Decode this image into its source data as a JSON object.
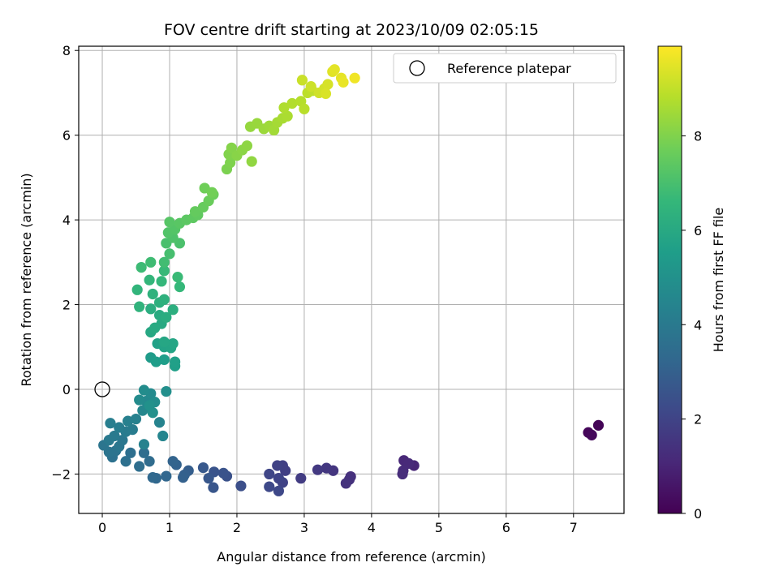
{
  "chart_data": {
    "type": "scatter",
    "title": "FOV centre drift starting at 2023/10/09 02:05:15",
    "xlabel": "Angular distance from reference (arcmin)",
    "ylabel": "Rotation from reference (arcmin)",
    "xlim": [
      -0.35,
      7.75
    ],
    "ylim": [
      -2.93,
      8.1
    ],
    "xticks": [
      "0",
      "1",
      "2",
      "3",
      "4",
      "5",
      "6",
      "7"
    ],
    "yticks": [
      "−2",
      "0",
      "2",
      "4",
      "6",
      "8"
    ],
    "grid": true,
    "legend_position": "top-right",
    "legend": [
      {
        "label": "Reference platepar",
        "marker": "open-circle",
        "color": "#000000"
      }
    ],
    "reference_point": {
      "x": 0,
      "y": 0
    },
    "colorbar": {
      "label": "Hours from first FF file",
      "colormap": "viridis",
      "range": [
        0,
        9.9
      ],
      "ticks": [
        "0",
        "2",
        "4",
        "6",
        "8"
      ]
    },
    "points": [
      [
        7.37,
        -0.85,
        0.1
      ],
      [
        7.22,
        -1.02,
        0.15
      ],
      [
        7.27,
        -1.08,
        0.2
      ],
      [
        4.63,
        -1.8,
        1.05
      ],
      [
        4.48,
        -1.68,
        1.1
      ],
      [
        4.55,
        -1.75,
        1.15
      ],
      [
        4.47,
        -1.92,
        1.2
      ],
      [
        4.46,
        -2.0,
        1.25
      ],
      [
        3.69,
        -2.06,
        1.35
      ],
      [
        3.67,
        -2.13,
        1.4
      ],
      [
        3.62,
        -2.22,
        1.45
      ],
      [
        3.43,
        -1.92,
        1.55
      ],
      [
        3.33,
        -1.86,
        1.6
      ],
      [
        3.2,
        -1.9,
        1.65
      ],
      [
        2.95,
        -2.1,
        1.75
      ],
      [
        2.72,
        -1.92,
        1.85
      ],
      [
        2.68,
        -1.8,
        1.9
      ],
      [
        2.6,
        -1.8,
        1.95
      ],
      [
        2.68,
        -2.2,
        2.0
      ],
      [
        2.62,
        -2.1,
        2.05
      ],
      [
        2.48,
        -2.0,
        2.1
      ],
      [
        2.62,
        -2.4,
        2.15
      ],
      [
        2.48,
        -2.3,
        2.2
      ],
      [
        2.06,
        -2.28,
        2.4
      ],
      [
        1.85,
        -2.05,
        2.5
      ],
      [
        1.8,
        -1.98,
        2.55
      ],
      [
        1.66,
        -1.95,
        2.6
      ],
      [
        1.65,
        -2.32,
        2.65
      ],
      [
        1.58,
        -2.1,
        2.7
      ],
      [
        1.5,
        -1.85,
        2.75
      ],
      [
        1.28,
        -1.92,
        2.95
      ],
      [
        1.22,
        -2.02,
        3.0
      ],
      [
        1.2,
        -2.08,
        3.05
      ],
      [
        1.1,
        -1.78,
        3.1
      ],
      [
        1.05,
        -1.7,
        3.15
      ],
      [
        0.95,
        -2.05,
        3.25
      ],
      [
        0.8,
        -2.1,
        3.3
      ],
      [
        0.75,
        -2.08,
        3.35
      ],
      [
        0.7,
        -1.7,
        3.45
      ],
      [
        0.62,
        -1.5,
        3.5
      ],
      [
        0.55,
        -1.82,
        3.55
      ],
      [
        0.42,
        -1.5,
        3.6
      ],
      [
        0.35,
        -1.7,
        3.65
      ],
      [
        0.15,
        -1.6,
        3.7
      ],
      [
        0.2,
        -1.45,
        3.75
      ],
      [
        0.1,
        -1.48,
        3.8
      ],
      [
        0.02,
        -1.32,
        3.85
      ],
      [
        0.25,
        -1.35,
        3.9
      ],
      [
        0.3,
        -1.2,
        3.95
      ],
      [
        0.1,
        -1.2,
        4.0
      ],
      [
        0.18,
        -1.1,
        4.05
      ],
      [
        0.35,
        -1.0,
        4.1
      ],
      [
        0.45,
        -0.95,
        4.15
      ],
      [
        0.25,
        -0.9,
        4.2
      ],
      [
        0.12,
        -0.8,
        4.25
      ],
      [
        0.38,
        -0.75,
        4.3
      ],
      [
        0.5,
        -0.7,
        4.35
      ],
      [
        0.62,
        -1.3,
        4.4
      ],
      [
        0.85,
        -0.78,
        4.45
      ],
      [
        0.9,
        -1.1,
        4.5
      ],
      [
        0.6,
        -0.5,
        4.6
      ],
      [
        0.65,
        -0.28,
        4.65
      ],
      [
        0.72,
        -0.1,
        4.7
      ],
      [
        0.55,
        -0.25,
        4.75
      ],
      [
        0.62,
        -0.02,
        4.8
      ],
      [
        0.78,
        -0.3,
        4.85
      ],
      [
        0.95,
        -0.05,
        4.9
      ],
      [
        0.75,
        -0.55,
        4.95
      ],
      [
        0.7,
        -0.38,
        5.0
      ],
      [
        0.72,
        0.75,
        5.4
      ],
      [
        0.8,
        0.65,
        5.45
      ],
      [
        0.92,
        0.7,
        5.5
      ],
      [
        1.08,
        0.55,
        5.55
      ],
      [
        1.08,
        0.65,
        5.6
      ],
      [
        0.82,
        1.08,
        5.65
      ],
      [
        0.92,
        1.0,
        5.7
      ],
      [
        1.02,
        0.98,
        5.75
      ],
      [
        1.05,
        1.08,
        5.8
      ],
      [
        0.92,
        1.12,
        5.85
      ],
      [
        0.72,
        1.35,
        5.9
      ],
      [
        0.88,
        1.55,
        5.95
      ],
      [
        0.78,
        1.45,
        6.0
      ],
      [
        0.85,
        1.75,
        6.05
      ],
      [
        0.95,
        1.7,
        6.1
      ],
      [
        0.72,
        1.9,
        6.15
      ],
      [
        1.05,
        1.88,
        6.2
      ],
      [
        0.85,
        2.05,
        6.25
      ],
      [
        0.92,
        2.12,
        6.3
      ],
      [
        0.75,
        2.25,
        6.35
      ],
      [
        0.55,
        1.95,
        6.4
      ],
      [
        0.52,
        2.35,
        6.45
      ],
      [
        0.7,
        2.58,
        6.5
      ],
      [
        0.88,
        2.55,
        6.55
      ],
      [
        1.15,
        2.42,
        6.6
      ],
      [
        0.92,
        2.8,
        6.65
      ],
      [
        1.12,
        2.65,
        6.7
      ],
      [
        0.58,
        2.88,
        6.75
      ],
      [
        0.72,
        3.0,
        6.8
      ],
      [
        0.92,
        3.0,
        6.85
      ],
      [
        1.0,
        3.2,
        6.95
      ],
      [
        0.95,
        3.45,
        7.0
      ],
      [
        1.15,
        3.45,
        7.05
      ],
      [
        1.05,
        3.58,
        7.1
      ],
      [
        0.98,
        3.7,
        7.15
      ],
      [
        1.08,
        3.78,
        7.2
      ],
      [
        1.0,
        3.95,
        7.25
      ],
      [
        1.15,
        3.92,
        7.3
      ],
      [
        1.25,
        4.0,
        7.35
      ],
      [
        1.35,
        4.05,
        7.4
      ],
      [
        1.42,
        4.12,
        7.45
      ],
      [
        1.38,
        4.2,
        7.5
      ],
      [
        1.5,
        4.3,
        7.55
      ],
      [
        1.58,
        4.45,
        7.6
      ],
      [
        1.65,
        4.6,
        7.65
      ],
      [
        1.52,
        4.75,
        7.7
      ],
      [
        1.63,
        4.65,
        7.75
      ],
      [
        1.85,
        5.2,
        7.9
      ],
      [
        1.9,
        5.35,
        7.95
      ],
      [
        1.88,
        5.55,
        8.0
      ],
      [
        1.92,
        5.7,
        8.05
      ],
      [
        2.0,
        5.52,
        8.1
      ],
      [
        2.08,
        5.65,
        8.15
      ],
      [
        2.15,
        5.75,
        8.2
      ],
      [
        2.22,
        5.38,
        8.25
      ],
      [
        2.2,
        6.2,
        8.3
      ],
      [
        2.3,
        6.28,
        8.35
      ],
      [
        2.4,
        6.15,
        8.4
      ],
      [
        2.48,
        6.22,
        8.45
      ],
      [
        2.55,
        6.12,
        8.5
      ],
      [
        2.6,
        6.3,
        8.55
      ],
      [
        2.68,
        6.4,
        8.6
      ],
      [
        2.75,
        6.45,
        8.65
      ],
      [
        2.7,
        6.65,
        8.7
      ],
      [
        2.82,
        6.75,
        8.75
      ],
      [
        2.95,
        6.8,
        8.8
      ],
      [
        3.0,
        6.62,
        8.85
      ],
      [
        3.05,
        7.0,
        8.9
      ],
      [
        3.12,
        7.05,
        8.95
      ],
      [
        2.97,
        7.3,
        9.1
      ],
      [
        3.1,
        7.15,
        9.15
      ],
      [
        3.22,
        7.0,
        9.2
      ],
      [
        3.3,
        7.1,
        9.25
      ],
      [
        3.35,
        7.2,
        9.3
      ],
      [
        3.32,
        6.98,
        9.35
      ],
      [
        3.42,
        7.5,
        9.45
      ],
      [
        3.45,
        7.55,
        9.5
      ],
      [
        3.55,
        7.35,
        9.55
      ],
      [
        3.58,
        7.25,
        9.6
      ],
      [
        3.75,
        7.35,
        9.7
      ]
    ]
  }
}
